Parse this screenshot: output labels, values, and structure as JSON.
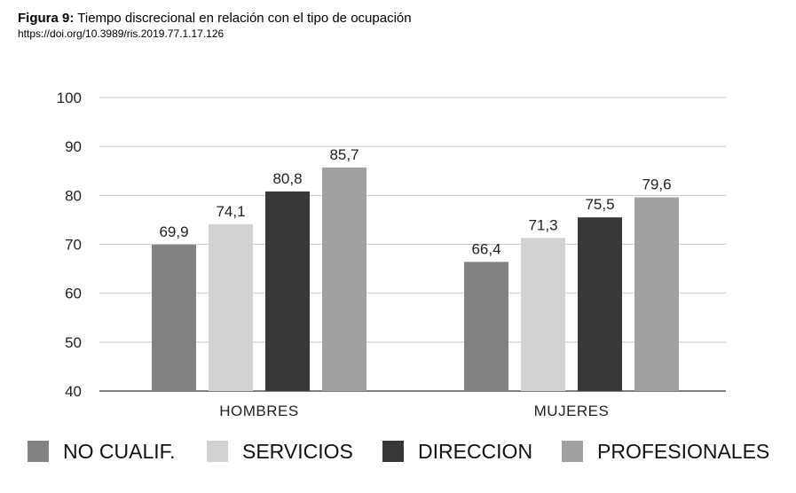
{
  "caption": {
    "figure_label": "Figura 9:",
    "title": "Tiempo discrecional en relación con el tipo de ocupación",
    "doi": "https://doi.org/10.3989/ris.2019.77.1.17.126"
  },
  "chart_data": {
    "type": "bar",
    "title": "",
    "xlabel": "",
    "ylabel": "",
    "categories": [
      "HOMBRES",
      "MUJERES"
    ],
    "series": [
      {
        "name": "NO CUALIF.",
        "values": [
          69.9,
          66.4
        ],
        "labels": [
          "69,9",
          "66,4"
        ],
        "color": "#828282"
      },
      {
        "name": "SERVICIOS",
        "values": [
          74.1,
          71.3
        ],
        "labels": [
          "74,1",
          "71,3"
        ],
        "color": "#d2d2d2"
      },
      {
        "name": "DIRECCION",
        "values": [
          80.8,
          75.5
        ],
        "labels": [
          "80,8",
          "75,5"
        ],
        "color": "#383838"
      },
      {
        "name": "PROFESIONALES",
        "values": [
          85.7,
          79.6
        ],
        "labels": [
          "85,7",
          "79,6"
        ],
        "color": "#a0a0a0"
      }
    ],
    "ylim": [
      40,
      100
    ],
    "yticks": [
      40,
      50,
      60,
      70,
      80,
      90,
      100
    ],
    "grid": true,
    "legend_position": "bottom"
  }
}
